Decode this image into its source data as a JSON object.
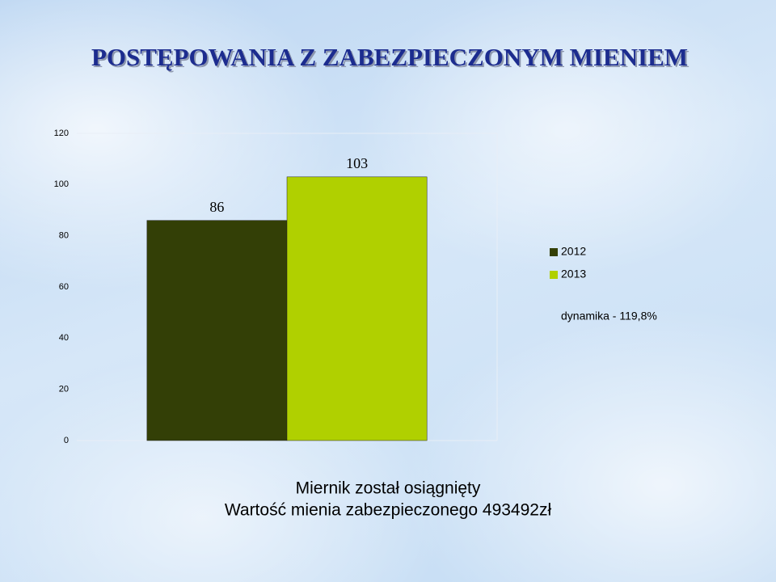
{
  "chart_data": {
    "type": "bar",
    "title": "POSTĘPOWANIA Z ZABEZPIECZONYM MIENIEM",
    "categories": [
      null
    ],
    "series": [
      {
        "name": "2012",
        "color": "#333f06",
        "values": [
          86
        ]
      },
      {
        "name": "2013",
        "color": "#b0d000",
        "values": [
          103
        ]
      }
    ],
    "ylim": [
      0,
      120
    ],
    "yticks": [
      0,
      20,
      40,
      60,
      80,
      100,
      120
    ],
    "grid": false,
    "legend": "right",
    "annotation": "dynamika - 119,8%",
    "notes": [
      "Miernik został osiągnięty",
      "Wartość mienia zabezpieczonego 493492zł"
    ]
  }
}
